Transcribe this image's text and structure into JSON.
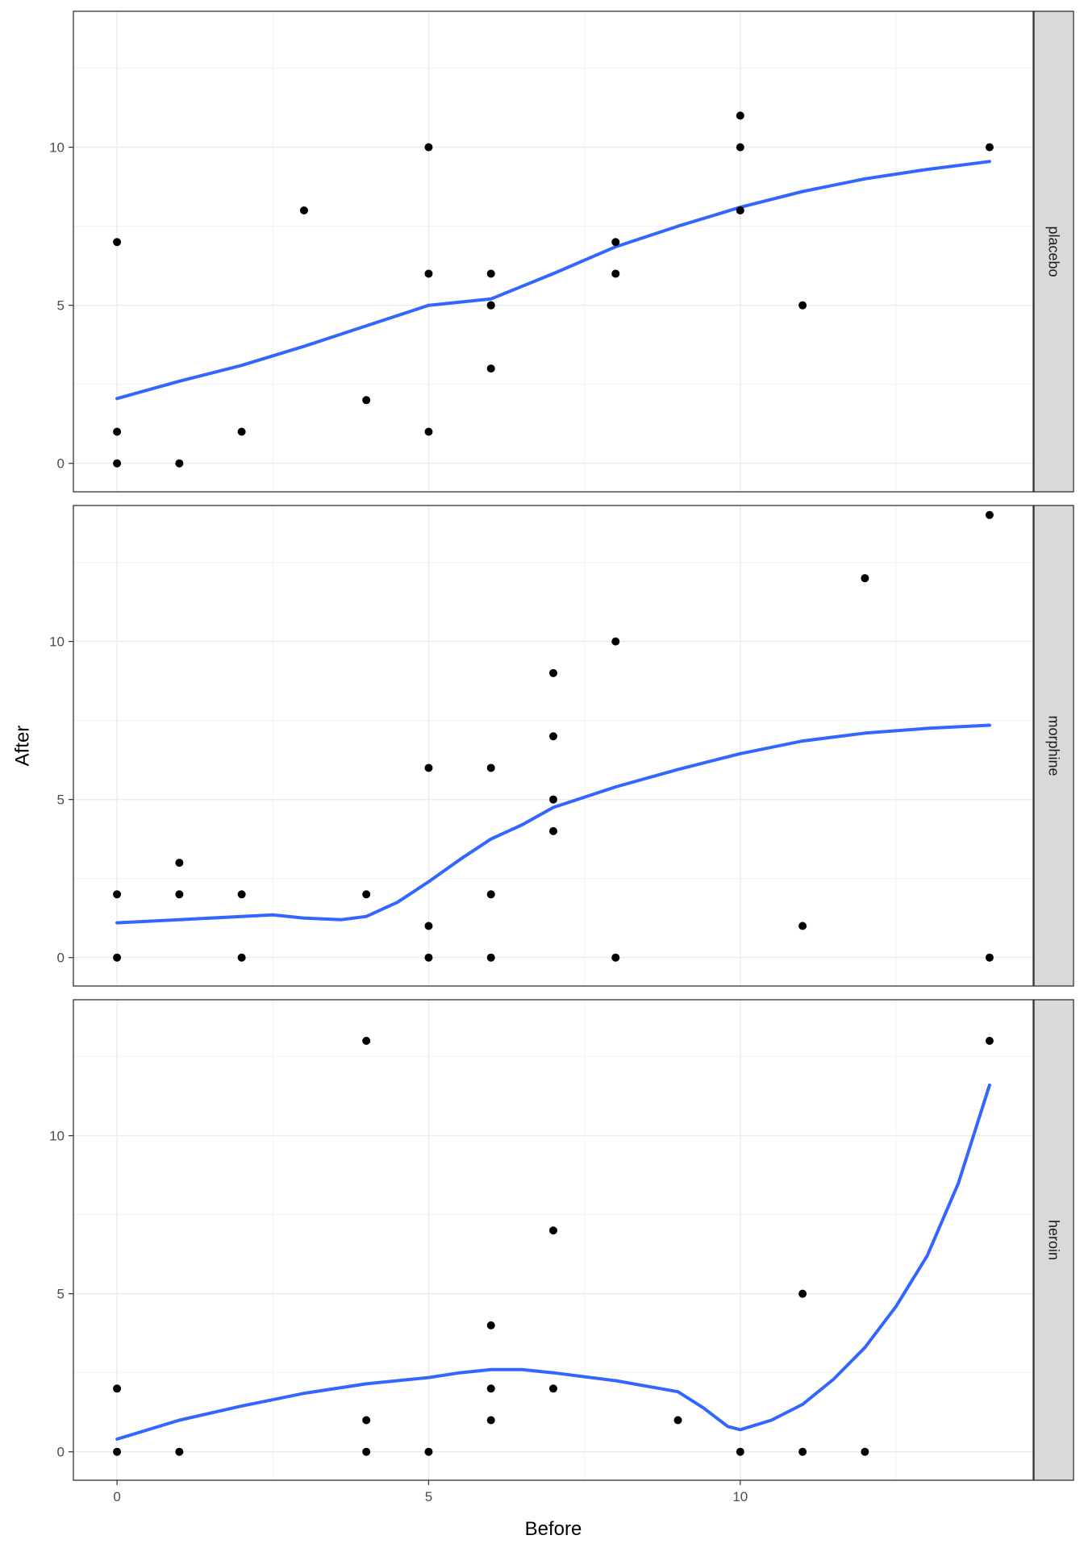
{
  "chart_data": {
    "type": "scatter",
    "xlabel": "Before",
    "ylabel": "After",
    "xlim": [
      -0.7,
      14.7
    ],
    "ylim": [
      -0.9,
      14.3
    ],
    "x_ticks": [
      0,
      5,
      10
    ],
    "y_ticks": [
      0,
      5,
      10
    ],
    "grid": true,
    "point_color": "#000000",
    "smooth_color": "#3366FF",
    "strip_fill": "#D9D9D9",
    "panels": [
      {
        "name": "placebo",
        "points": [
          [
            0,
            7
          ],
          [
            0,
            1
          ],
          [
            0,
            0
          ],
          [
            1,
            0
          ],
          [
            2,
            1
          ],
          [
            3,
            8
          ],
          [
            4,
            2
          ],
          [
            5,
            10
          ],
          [
            5,
            6
          ],
          [
            5,
            1
          ],
          [
            6,
            6
          ],
          [
            6,
            5
          ],
          [
            6,
            5
          ],
          [
            6,
            3
          ],
          [
            8,
            7
          ],
          [
            8,
            6
          ],
          [
            10,
            11
          ],
          [
            10,
            10
          ],
          [
            10,
            8
          ],
          [
            11,
            5
          ],
          [
            14,
            10
          ]
        ],
        "smooth": [
          [
            0,
            2.05
          ],
          [
            1,
            2.6
          ],
          [
            2,
            3.1
          ],
          [
            3,
            3.7
          ],
          [
            4,
            4.35
          ],
          [
            5,
            5.0
          ],
          [
            6,
            5.2
          ],
          [
            7,
            6.0
          ],
          [
            8,
            6.85
          ],
          [
            9,
            7.5
          ],
          [
            10,
            8.1
          ],
          [
            11,
            8.6
          ],
          [
            12,
            9.0
          ],
          [
            13,
            9.3
          ],
          [
            14,
            9.55
          ]
        ]
      },
      {
        "name": "morphine",
        "points": [
          [
            0,
            2
          ],
          [
            0,
            0
          ],
          [
            1,
            3
          ],
          [
            1,
            2
          ],
          [
            2,
            2
          ],
          [
            2,
            0
          ],
          [
            4,
            2
          ],
          [
            5,
            6
          ],
          [
            5,
            1
          ],
          [
            5,
            0
          ],
          [
            6,
            6
          ],
          [
            6,
            2
          ],
          [
            6,
            0
          ],
          [
            7,
            9
          ],
          [
            7,
            7
          ],
          [
            7,
            5
          ],
          [
            7,
            4
          ],
          [
            8,
            10
          ],
          [
            8,
            0
          ],
          [
            11,
            1
          ],
          [
            12,
            12
          ],
          [
            14,
            14
          ],
          [
            14,
            0
          ]
        ],
        "smooth": [
          [
            0,
            1.1
          ],
          [
            1,
            1.2
          ],
          [
            2,
            1.3
          ],
          [
            2.5,
            1.35
          ],
          [
            3,
            1.25
          ],
          [
            3.6,
            1.2
          ],
          [
            4,
            1.3
          ],
          [
            4.5,
            1.75
          ],
          [
            5,
            2.4
          ],
          [
            5.5,
            3.1
          ],
          [
            6,
            3.75
          ],
          [
            6.5,
            4.2
          ],
          [
            7,
            4.75
          ],
          [
            8,
            5.4
          ],
          [
            9,
            5.95
          ],
          [
            10,
            6.45
          ],
          [
            11,
            6.85
          ],
          [
            12,
            7.1
          ],
          [
            13,
            7.25
          ],
          [
            14,
            7.35
          ]
        ]
      },
      {
        "name": "heroin",
        "points": [
          [
            0,
            2
          ],
          [
            0,
            0
          ],
          [
            1,
            0
          ],
          [
            4,
            13
          ],
          [
            4,
            1
          ],
          [
            4,
            0
          ],
          [
            5,
            0
          ],
          [
            6,
            4
          ],
          [
            6,
            2
          ],
          [
            6,
            1
          ],
          [
            7,
            7
          ],
          [
            7,
            2
          ],
          [
            9,
            1
          ],
          [
            10,
            0
          ],
          [
            11,
            5
          ],
          [
            11,
            0
          ],
          [
            12,
            0
          ],
          [
            14,
            13
          ]
        ],
        "smooth": [
          [
            0,
            0.4
          ],
          [
            1,
            1.0
          ],
          [
            2,
            1.45
          ],
          [
            3,
            1.85
          ],
          [
            4,
            2.15
          ],
          [
            5,
            2.35
          ],
          [
            5.5,
            2.5
          ],
          [
            6,
            2.6
          ],
          [
            6.5,
            2.6
          ],
          [
            7,
            2.5
          ],
          [
            8,
            2.25
          ],
          [
            9,
            1.9
          ],
          [
            9.4,
            1.4
          ],
          [
            9.8,
            0.8
          ],
          [
            10,
            0.7
          ],
          [
            10.5,
            1.0
          ],
          [
            11,
            1.5
          ],
          [
            11.5,
            2.3
          ],
          [
            12,
            3.3
          ],
          [
            12.5,
            4.6
          ],
          [
            13,
            6.2
          ],
          [
            13.5,
            8.5
          ],
          [
            14,
            11.6
          ]
        ]
      }
    ]
  }
}
